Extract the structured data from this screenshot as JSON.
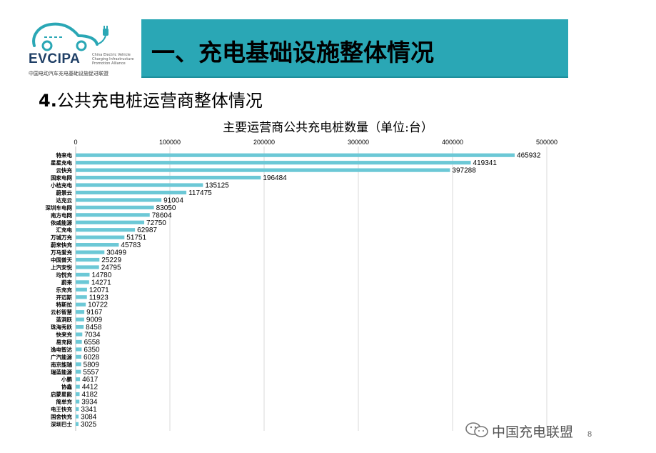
{
  "logo": {
    "name": "EVCIPA",
    "en_lines": [
      "China Electric Vehicle",
      "Charging Infrastructure",
      "Promotion Alliance"
    ],
    "cn": "中国电动汽车充电基础设施促进联盟"
  },
  "header": {
    "title": "一、充电基础设施整体情况"
  },
  "section": {
    "number": "4.",
    "title": "公共充电桩运营商整体情况"
  },
  "watermark": {
    "text": "中国充电联盟"
  },
  "page": {
    "number": "8"
  },
  "colors": {
    "banner": "#2aa7b5",
    "bar": "#6cc8d6"
  },
  "chart_data": {
    "type": "bar",
    "orientation": "horizontal",
    "title": "主要运营商公共充电桩数量（单位:台）",
    "xlim": [
      0,
      500000
    ],
    "x_ticks": [
      "0",
      "100000",
      "200000",
      "300000",
      "400000",
      "500000"
    ],
    "x_axis_position": "top",
    "grid": true,
    "categories": [
      "特来电",
      "星星充电",
      "云快充",
      "国家电网",
      "小桔充电",
      "蔚景云",
      "达克云",
      "深圳车电网",
      "南方电网",
      "依威能源",
      "汇充电",
      "万城万充",
      "蔚来快充",
      "万马爱充",
      "中国普天",
      "上汽安悦",
      "均悦充",
      "蔚来",
      "乐充充",
      "开迈斯",
      "特斯拉",
      "云杉智慧",
      "蓝洞跃",
      "珠海秀跃",
      "快来充",
      "易充网",
      "逸电智达",
      "广汽能源",
      "南京能瑞",
      "瑞蓝能源",
      "小鹏",
      "协鑫",
      "启蒙星能",
      "简单充",
      "电王快充",
      "国舍快充",
      "深圳巴士"
    ],
    "values": [
      465932,
      419341,
      397288,
      196484,
      135125,
      117475,
      91004,
      83050,
      78604,
      72750,
      62987,
      51751,
      45783,
      30499,
      25229,
      24795,
      14780,
      14271,
      12071,
      11923,
      10722,
      9167,
      9009,
      8458,
      7034,
      6558,
      6350,
      6028,
      5809,
      5557,
      4617,
      4412,
      4182,
      3934,
      3341,
      3084,
      3025
    ]
  }
}
